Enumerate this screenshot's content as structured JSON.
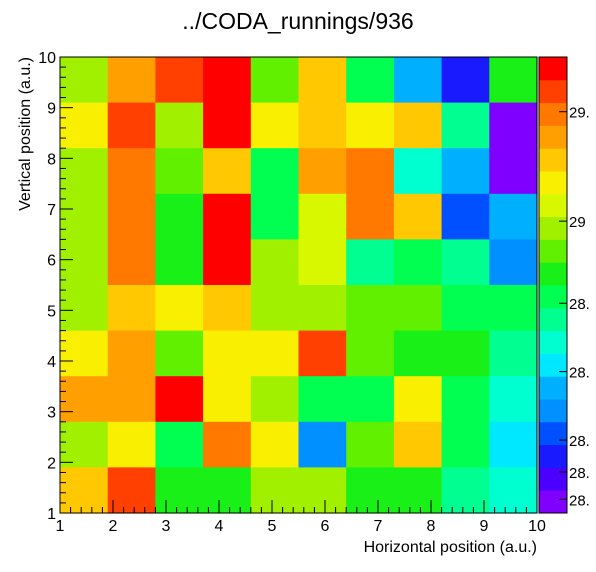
{
  "chart_data": {
    "type": "heatmap",
    "title": "../CODA_runnings/936",
    "xlabel": "Horizontal position (a.u.)",
    "ylabel": "Vertical position (a.u.)",
    "xlim": [
      1,
      10
    ],
    "ylim": [
      1,
      10
    ],
    "x_ticks": [
      "1",
      "2",
      "3",
      "4",
      "5",
      "6",
      "7",
      "8",
      "9",
      "10"
    ],
    "y_ticks": [
      "1",
      "2",
      "3",
      "4",
      "5",
      "6",
      "7",
      "8",
      "9",
      "10"
    ],
    "z_tick_labels": [
      "29.",
      "29",
      "28.",
      "28.",
      "28.",
      "28.",
      "28."
    ],
    "z_tick_levels": [
      0.88,
      0.64,
      0.46,
      0.31,
      0.16,
      0.09,
      0.03
    ],
    "zlim_normalized": [
      0,
      1
    ],
    "palette": [
      "#7f00ff",
      "#4b00ff",
      "#1a1aff",
      "#0050ff",
      "#0090ff",
      "#00b0ff",
      "#00e8ff",
      "#00ffd0",
      "#00ff90",
      "#00ff50",
      "#18f018",
      "#60f000",
      "#a0f000",
      "#d8f800",
      "#f8f000",
      "#ffc800",
      "#ffa000",
      "#ff7800",
      "#ff4000",
      "#ff0000"
    ],
    "rows_top_to_bottom": [
      [
        0.64,
        0.82,
        0.92,
        0.97,
        0.55,
        0.78,
        0.45,
        0.25,
        0.1,
        0.5
      ],
      [
        0.72,
        0.9,
        0.62,
        1.0,
        0.74,
        0.76,
        0.72,
        0.75,
        0.42,
        0.03
      ],
      [
        0.6,
        0.88,
        0.58,
        0.75,
        0.47,
        0.84,
        0.89,
        0.37,
        0.25,
        0.04
      ],
      [
        0.6,
        0.85,
        0.5,
        1.0,
        0.47,
        0.69,
        0.85,
        0.77,
        0.18,
        0.26
      ],
      [
        0.6,
        0.85,
        0.5,
        1.0,
        0.64,
        0.69,
        0.4,
        0.48,
        0.4,
        0.22
      ],
      [
        0.61,
        0.77,
        0.72,
        0.77,
        0.62,
        0.62,
        0.58,
        0.58,
        0.49,
        0.49
      ],
      [
        0.72,
        0.84,
        0.59,
        0.73,
        0.73,
        0.91,
        0.59,
        0.5,
        0.5,
        0.42
      ],
      [
        0.8,
        0.8,
        1.0,
        0.71,
        0.62,
        0.48,
        0.45,
        0.72,
        0.46,
        0.37
      ],
      [
        0.64,
        0.71,
        0.48,
        0.85,
        0.71,
        0.22,
        0.56,
        0.79,
        0.47,
        0.33
      ],
      [
        0.78,
        0.9,
        0.5,
        0.5,
        0.62,
        0.62,
        0.5,
        0.5,
        0.43,
        0.36
      ]
    ]
  }
}
